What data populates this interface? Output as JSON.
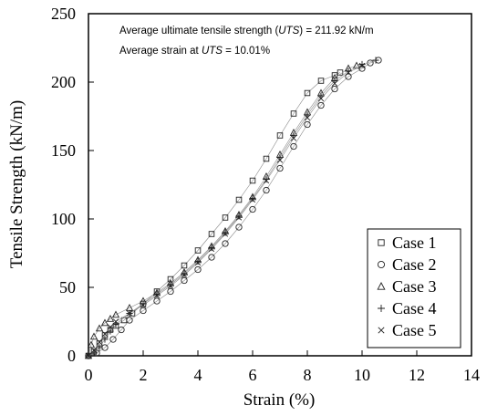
{
  "chart_data": {
    "type": "scatter",
    "xlabel": "Strain (%)",
    "ylabel": "Tensile Strength (kN/m)",
    "xlim": [
      0,
      14
    ],
    "ylim": [
      0,
      250
    ],
    "x_ticks": [
      "0",
      "2",
      "4",
      "6",
      "8",
      "10",
      "12",
      "14"
    ],
    "y_ticks": [
      "0",
      "50",
      "100",
      "150",
      "200",
      "250"
    ],
    "grid": false,
    "legend_position": "bottom-right",
    "annotations": {
      "line1_prefix": "Average ultimate  tensile strength (",
      "line1_abbr": "UTS",
      "line1_suffix": ") = 211.92 kN/m",
      "line2_prefix": "Average strain at ",
      "line2_abbr": "UTS",
      "line2_suffix": " = 10.01%"
    },
    "series": [
      {
        "name": "Case 1",
        "marker": "square",
        "x": [
          0.0,
          0.2,
          0.4,
          0.6,
          0.8,
          1.0,
          1.3,
          1.6,
          2.0,
          2.5,
          3.0,
          3.5,
          4.0,
          4.5,
          5.0,
          5.5,
          6.0,
          6.5,
          7.0,
          7.5,
          8.0,
          8.5,
          9.0,
          9.2
        ],
        "y": [
          0,
          3,
          9,
          15,
          19,
          22,
          26,
          31,
          38,
          47,
          56,
          66,
          77,
          89,
          101,
          114,
          128,
          144,
          161,
          177,
          192,
          201,
          205,
          207
        ]
      },
      {
        "name": "Case 2",
        "marker": "circle",
        "x": [
          0.0,
          0.3,
          0.6,
          0.9,
          1.2,
          1.5,
          2.0,
          2.5,
          3.0,
          3.5,
          4.0,
          4.5,
          5.0,
          5.5,
          6.0,
          6.5,
          7.0,
          7.5,
          8.0,
          8.5,
          9.0,
          9.5,
          10.0,
          10.3,
          10.6
        ],
        "y": [
          0,
          2,
          6,
          12,
          19,
          26,
          33,
          40,
          47,
          55,
          63,
          72,
          82,
          94,
          107,
          121,
          137,
          153,
          169,
          183,
          195,
          204,
          210,
          214,
          216
        ]
      },
      {
        "name": "Case 3",
        "marker": "triangle",
        "x": [
          0.0,
          0.1,
          0.2,
          0.4,
          0.6,
          0.8,
          1.0,
          1.5,
          2.0,
          2.5,
          3.0,
          3.5,
          4.0,
          4.5,
          5.0,
          5.5,
          6.0,
          6.5,
          7.0,
          7.5,
          8.0,
          8.5,
          9.0,
          9.5,
          9.8
        ],
        "y": [
          0,
          8,
          14,
          20,
          24,
          27,
          30,
          35,
          40,
          46,
          53,
          61,
          70,
          80,
          91,
          103,
          116,
          131,
          147,
          163,
          178,
          192,
          203,
          210,
          212
        ]
      },
      {
        "name": "Case 4",
        "marker": "plus",
        "x": [
          0.0,
          0.2,
          0.4,
          0.6,
          0.8,
          1.0,
          1.5,
          2.0,
          2.5,
          3.0,
          3.5,
          4.0,
          4.5,
          5.0,
          5.5,
          6.0,
          6.5,
          7.0,
          7.5,
          8.0,
          8.5,
          9.0,
          9.5,
          10.0,
          10.5
        ],
        "y": [
          0,
          2,
          6,
          12,
          18,
          23,
          31,
          38,
          45,
          52,
          60,
          69,
          79,
          90,
          102,
          115,
          129,
          145,
          161,
          176,
          190,
          201,
          208,
          213,
          216
        ]
      },
      {
        "name": "Case 5",
        "marker": "x",
        "x": [
          0.0,
          0.2,
          0.4,
          0.6,
          0.8,
          1.0,
          1.5,
          2.0,
          2.5,
          3.0,
          3.5,
          4.0,
          4.5,
          5.0,
          5.5,
          6.0,
          6.5,
          7.0,
          7.5,
          8.0,
          8.5,
          9.0,
          9.5,
          10.0
        ],
        "y": [
          0,
          4,
          10,
          16,
          21,
          25,
          31,
          37,
          44,
          51,
          59,
          68,
          78,
          89,
          101,
          114,
          128,
          143,
          159,
          174,
          188,
          199,
          207,
          212
        ]
      }
    ]
  }
}
